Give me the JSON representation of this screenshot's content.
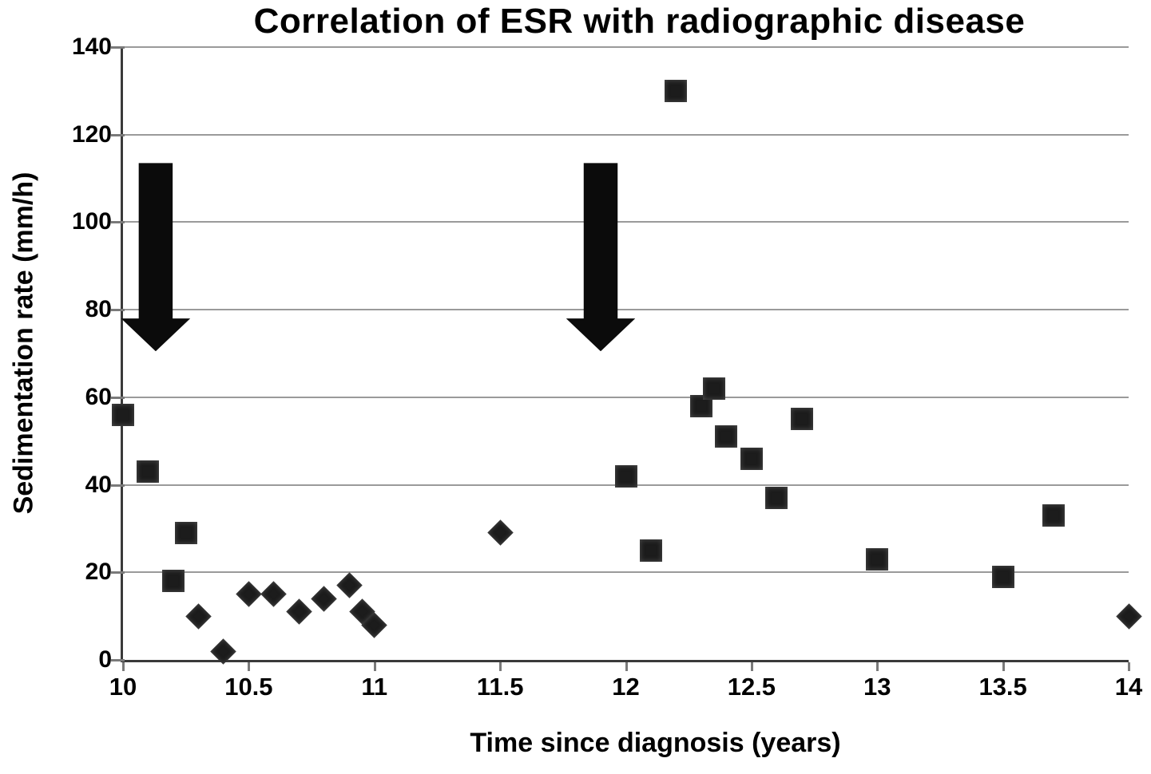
{
  "chart_data": {
    "type": "scatter",
    "title": "Correlation of ESR with radiographic disease",
    "xlabel": "Time since diagnosis (years)",
    "ylabel": "Sedimentation rate (mm/h)",
    "xlim": [
      10,
      14
    ],
    "ylim": [
      0,
      140
    ],
    "x_ticks": [
      10,
      10.5,
      11,
      11.5,
      12,
      12.5,
      13,
      13.5,
      14
    ],
    "x_tick_labels": [
      "10",
      "10.5",
      "11",
      "11.5",
      "12",
      "12.5",
      "13",
      "13.5",
      "14"
    ],
    "y_ticks": [
      0,
      20,
      40,
      60,
      80,
      100,
      120,
      140
    ],
    "y_tick_labels": [
      "0",
      "20",
      "40",
      "60",
      "80",
      "100",
      "120",
      "140"
    ],
    "grid": "horizontal-only",
    "legend": "none",
    "series": [
      {
        "name": "square-markers",
        "marker": "square",
        "points": [
          [
            10.0,
            56
          ],
          [
            10.1,
            43
          ],
          [
            10.2,
            18
          ],
          [
            10.25,
            29
          ],
          [
            12.0,
            42
          ],
          [
            12.1,
            25
          ],
          [
            12.2,
            130
          ],
          [
            12.3,
            58
          ],
          [
            12.35,
            62
          ],
          [
            12.4,
            51
          ],
          [
            12.5,
            46
          ],
          [
            12.6,
            37
          ],
          [
            12.7,
            55
          ],
          [
            13.0,
            23
          ],
          [
            13.5,
            19
          ],
          [
            13.7,
            33
          ]
        ]
      },
      {
        "name": "diamond-markers",
        "marker": "diamond",
        "points": [
          [
            10.3,
            10
          ],
          [
            10.4,
            2
          ],
          [
            10.5,
            15
          ],
          [
            10.6,
            15
          ],
          [
            10.7,
            11
          ],
          [
            10.8,
            14
          ],
          [
            10.9,
            17
          ],
          [
            10.95,
            11
          ],
          [
            11.0,
            8
          ],
          [
            11.5,
            29
          ],
          [
            14.0,
            10
          ]
        ]
      }
    ],
    "annotations": [
      {
        "type": "down-arrow",
        "x": 10.13,
        "y_top": 113.5,
        "y_shoulder": 78,
        "y_tip": 70.5,
        "body_width_years": 0.135,
        "head_width_years": 0.275
      },
      {
        "type": "down-arrow",
        "x": 11.9,
        "y_top": 113.5,
        "y_shoulder": 78,
        "y_tip": 70.5,
        "body_width_years": 0.135,
        "head_width_years": 0.275
      }
    ]
  },
  "colors": {
    "background": "#ffffff",
    "marker": "#1c1c1c",
    "gridline": "#9a9a9a",
    "axis": "#3a3a3a",
    "text": "#000000",
    "arrow": "#0b0b0b"
  }
}
